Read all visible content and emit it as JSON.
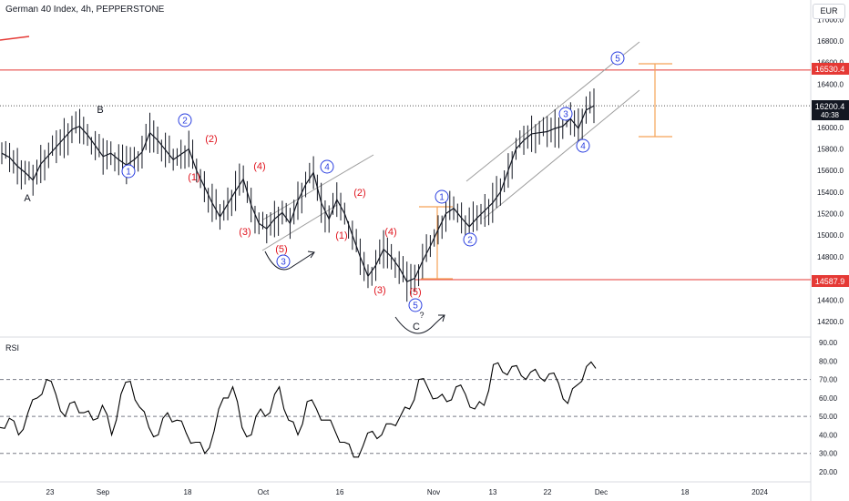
{
  "header": {
    "title": "German 40 Index, 4h, PEPPERSTONE",
    "currency": "EUR"
  },
  "rsi_panel": {
    "label": "RSI"
  },
  "price_tags": {
    "resistance": "16530.4",
    "current_price": "16200.4",
    "countdown": "40:38",
    "support": "14587.9"
  },
  "colors": {
    "up_line": "#131722",
    "resistance_line": "#e53935",
    "wave_blue": "#2b3fe0",
    "wave_red": "#e0141e",
    "channel": "#9e9e9e",
    "projection": "#f5a257",
    "rsi_line": "#000000",
    "tag_red": "#e53935",
    "tag_dark": "#131722"
  },
  "chart_data": [
    {
      "type": "line",
      "title": "German 40 Index, 4h, PEPPERSTONE",
      "y_ticks": [
        "17000.0",
        "16800.0",
        "16600.0",
        "16400.0",
        "16200.0",
        "16000.0",
        "15800.0",
        "15600.0",
        "15400.0",
        "15200.0",
        "15000.0",
        "14800.0",
        "14600.0",
        "14400.0",
        "14200.0"
      ],
      "x_ticks": [
        "23",
        "Sep",
        "18",
        "Oct",
        "16",
        "Nov",
        "13",
        "22",
        "Dec",
        "18",
        "2024"
      ],
      "ylim": [
        14130,
        17130
      ],
      "series": [
        {
          "values": [
            15760,
            15720,
            15640,
            15580,
            15510,
            15660,
            15740,
            15820,
            15900,
            15980,
            16010,
            15930,
            15830,
            15730,
            15760,
            15700,
            15650,
            15700,
            15770,
            15950,
            15880,
            15790,
            15700,
            15750,
            15800,
            15600,
            15450,
            15300,
            15170,
            15290,
            15410,
            15520,
            15280,
            15110,
            15060,
            15150,
            15210,
            15110,
            15320,
            15470,
            15580,
            15300,
            15150,
            15330,
            15200,
            15000,
            14800,
            14620,
            14720,
            14870,
            14800,
            14700,
            14570,
            14600,
            14760,
            14900,
            15050,
            15200,
            15250,
            15160,
            15080,
            15160,
            15230,
            15300,
            15400,
            15600,
            15800,
            15880,
            15940,
            15950,
            15960,
            15990,
            16010,
            16080,
            15990,
            16160,
            16200
          ]
        }
      ],
      "annotations": {
        "labels_black": [
          "A",
          "B",
          "C",
          "?"
        ],
        "waves_blue": [
          "1",
          "2",
          "3",
          "4",
          "5"
        ],
        "waves_red": [
          "(1)",
          "(2)",
          "(3)",
          "(4)",
          "(5)"
        ]
      },
      "horizontal_lines": [
        16530.4,
        14587.9
      ],
      "grid": false
    },
    {
      "type": "line",
      "title": "RSI",
      "y_ticks": [
        "90.00",
        "80.00",
        "70.00",
        "60.00",
        "50.00",
        "40.00",
        "30.00",
        "20.00"
      ],
      "ylim": [
        15,
        91
      ],
      "levels": [
        70,
        50,
        30
      ],
      "series": [
        {
          "values": [
            44,
            49,
            40,
            52,
            60,
            70,
            62,
            50,
            58,
            52,
            48,
            56,
            40,
            62,
            69,
            55,
            44,
            40,
            52,
            48,
            41,
            36,
            30,
            42,
            60,
            66,
            44,
            40,
            54,
            52,
            66,
            48,
            40,
            58,
            54,
            48,
            42,
            36,
            28,
            34,
            42,
            40,
            46,
            50,
            54,
            70,
            65,
            60,
            58,
            66,
            62,
            54,
            56,
            78,
            74,
            77,
            72,
            74,
            71,
            73,
            68,
            57,
            67,
            77,
            76
          ]
        }
      ]
    }
  ]
}
